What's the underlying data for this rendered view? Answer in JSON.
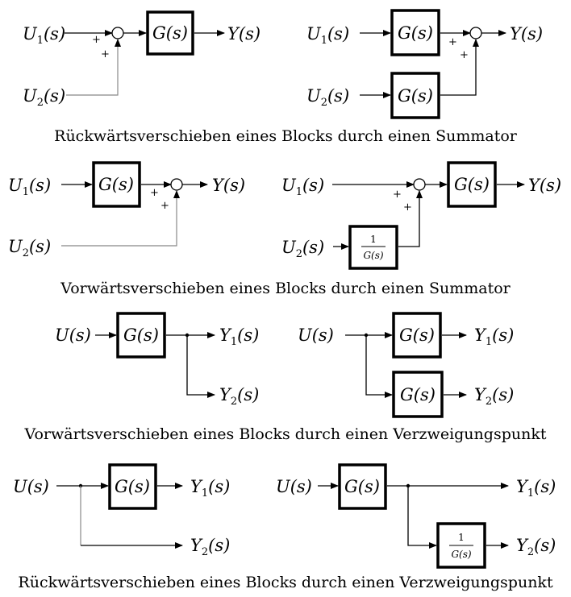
{
  "labels": {
    "u1": "U",
    "u2": "U",
    "u": "U",
    "y": "Y",
    "y1": "Y",
    "y2": "Y",
    "arg": "(s)",
    "sub1": "1",
    "sub2": "2",
    "g": "G(s)",
    "inv_num": "1",
    "inv_den": "G(s)",
    "plus": "+"
  },
  "captions": {
    "s1": "Rückwärtsverschieben eines Blocks durch einen Summator",
    "s2": "Vorwärtsverschieben eines Blocks durch einen Summator",
    "s3": "Vorwärtsverschieben eines Blocks durch einen Verzweigungspunkt",
    "s4": "Rückwärtsverschieben eines Blocks durch einen Verzweigungspunkt"
  }
}
